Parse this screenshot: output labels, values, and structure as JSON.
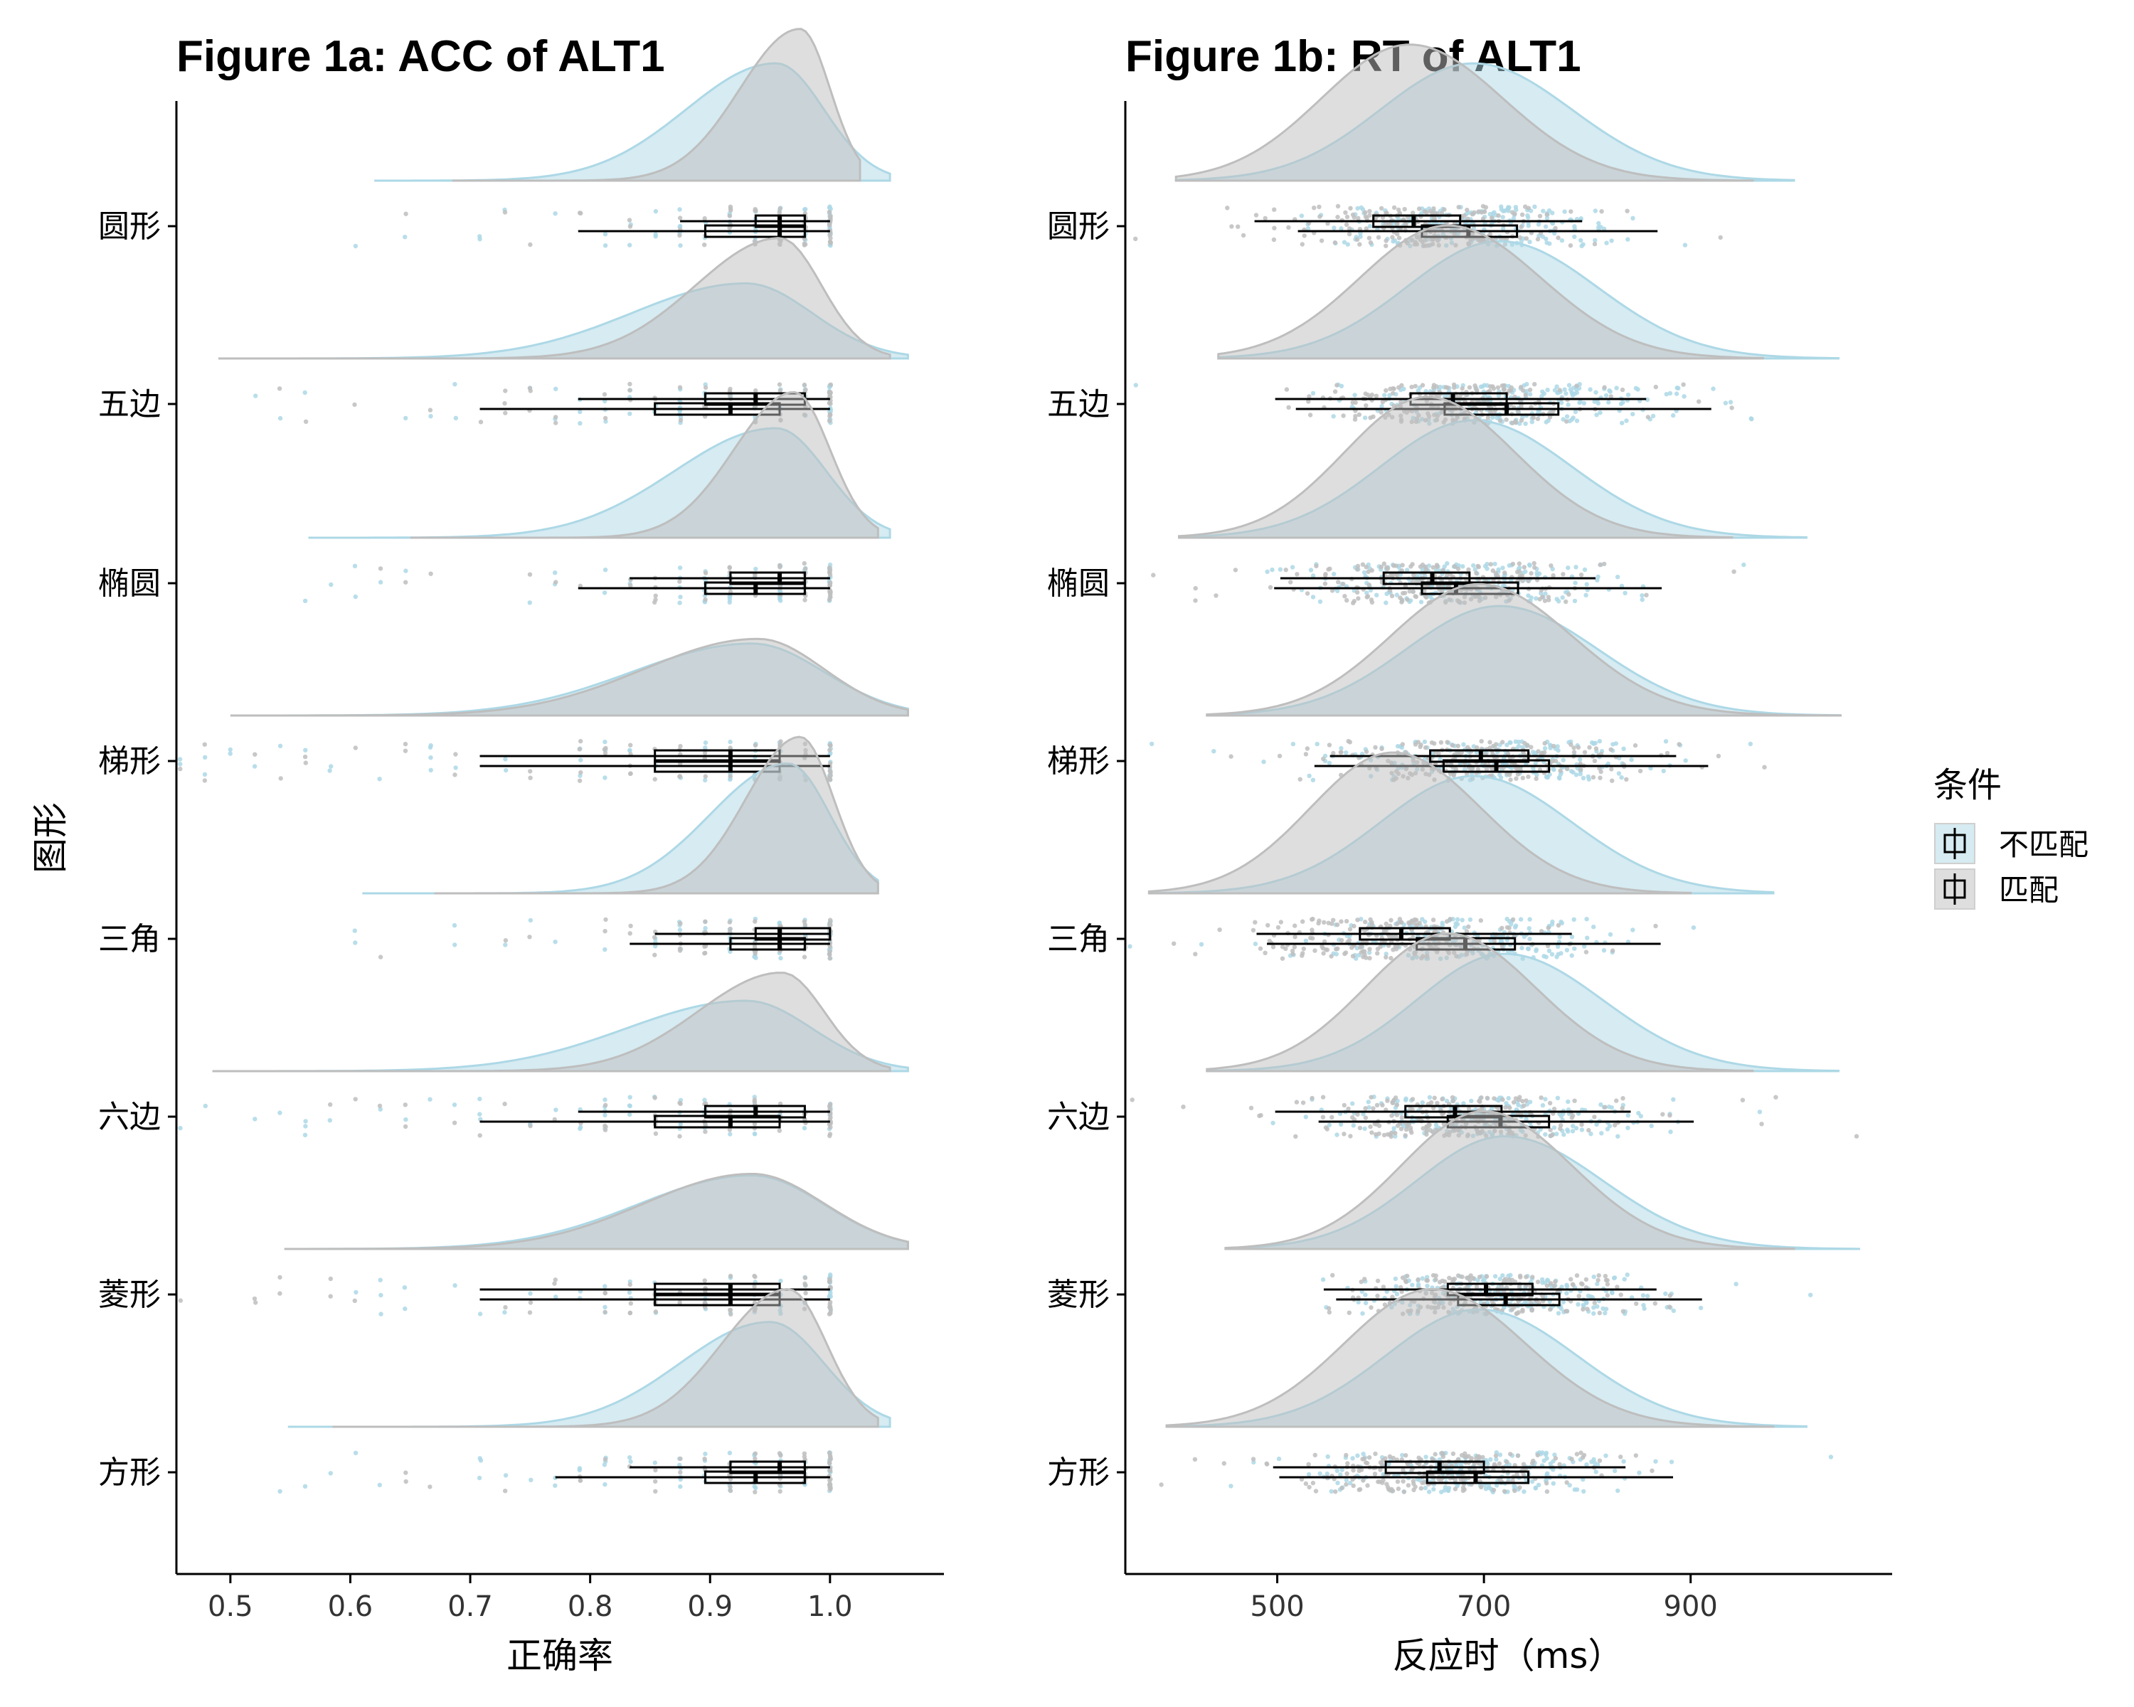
{
  "colors": {
    "mismatch": "#add8e6",
    "match": "#bebebe",
    "box": "#000000",
    "axis": "#000000"
  },
  "legend": {
    "title": "条件",
    "items": [
      {
        "label": "不匹配",
        "color": "#add8e6"
      },
      {
        "label": "匹配",
        "color": "#bebebe"
      }
    ]
  },
  "chart_data": [
    {
      "type": "raincloud",
      "title": "Figure 1a: ACC of ALT1",
      "xlabel": "正确率",
      "ylabel": "图形",
      "categories": [
        "圆形",
        "五边",
        "椭圆",
        "梯形",
        "三角",
        "六边",
        "菱形",
        "方形"
      ],
      "xlim": [
        0.455,
        1.095
      ],
      "xticks": [
        0.5,
        0.6,
        0.7,
        0.8,
        0.9,
        1.0
      ],
      "xtick_labels": [
        "0.5",
        "0.6",
        "0.7",
        "0.8",
        "0.9",
        "1.0"
      ],
      "grid": false,
      "legend_position": "right",
      "series": [
        {
          "name": "不匹配",
          "color": "#add8e6",
          "box": [
            {
              "wmin": 0.79,
              "q1": 0.896,
              "median": 0.958,
              "q3": 0.979,
              "wmax": 1.0
            },
            {
              "wmin": 0.708,
              "q1": 0.854,
              "median": 0.917,
              "q3": 0.958,
              "wmax": 1.0
            },
            {
              "wmin": 0.79,
              "q1": 0.896,
              "median": 0.938,
              "q3": 0.979,
              "wmax": 1.0
            },
            {
              "wmin": 0.708,
              "q1": 0.854,
              "median": 0.917,
              "q3": 0.958,
              "wmax": 1.0
            },
            {
              "wmin": 0.833,
              "q1": 0.917,
              "median": 0.958,
              "q3": 0.979,
              "wmax": 1.0
            },
            {
              "wmin": 0.708,
              "q1": 0.854,
              "median": 0.917,
              "q3": 0.958,
              "wmax": 1.0
            },
            {
              "wmin": 0.708,
              "q1": 0.854,
              "median": 0.917,
              "q3": 0.958,
              "wmax": 1.0
            },
            {
              "wmin": 0.771,
              "q1": 0.896,
              "median": 0.938,
              "q3": 0.979,
              "wmax": 1.0
            }
          ],
          "density": [
            {
              "lo": 0.62,
              "hi": 1.05,
              "mode": 0.955,
              "sdl": 0.075,
              "sdr": 0.04,
              "peak": 0.75
            },
            {
              "lo": 0.49,
              "hi": 1.065,
              "mode": 0.93,
              "sdl": 0.095,
              "sdr": 0.055,
              "peak": 0.48
            },
            {
              "lo": 0.565,
              "hi": 1.05,
              "mode": 0.955,
              "sdl": 0.085,
              "sdr": 0.042,
              "peak": 0.7
            },
            {
              "lo": 0.5,
              "hi": 1.065,
              "mode": 0.935,
              "sdl": 0.1,
              "sdr": 0.06,
              "peak": 0.46
            },
            {
              "lo": 0.61,
              "hi": 1.04,
              "mode": 0.965,
              "sdl": 0.065,
              "sdr": 0.035,
              "peak": 0.83
            },
            {
              "lo": 0.485,
              "hi": 1.065,
              "mode": 0.93,
              "sdl": 0.1,
              "sdr": 0.055,
              "peak": 0.45
            },
            {
              "lo": 0.545,
              "hi": 1.065,
              "mode": 0.935,
              "sdl": 0.095,
              "sdr": 0.06,
              "peak": 0.47
            },
            {
              "lo": 0.548,
              "hi": 1.05,
              "mode": 0.95,
              "sdl": 0.075,
              "sdr": 0.045,
              "peak": 0.67
            }
          ]
        },
        {
          "name": "匹配",
          "color": "#bebebe",
          "box": [
            {
              "wmin": 0.875,
              "q1": 0.938,
              "median": 0.958,
              "q3": 0.979,
              "wmax": 1.0
            },
            {
              "wmin": 0.79,
              "q1": 0.896,
              "median": 0.938,
              "q3": 0.979,
              "wmax": 1.0
            },
            {
              "wmin": 0.833,
              "q1": 0.917,
              "median": 0.958,
              "q3": 0.979,
              "wmax": 1.0
            },
            {
              "wmin": 0.708,
              "q1": 0.854,
              "median": 0.917,
              "q3": 0.958,
              "wmax": 1.0
            },
            {
              "wmin": 0.854,
              "q1": 0.938,
              "median": 0.958,
              "q3": 1.0,
              "wmax": 1.0
            },
            {
              "wmin": 0.79,
              "q1": 0.896,
              "median": 0.938,
              "q3": 0.979,
              "wmax": 1.0
            },
            {
              "wmin": 0.708,
              "q1": 0.854,
              "median": 0.917,
              "q3": 0.958,
              "wmax": 1.0
            },
            {
              "wmin": 0.833,
              "q1": 0.917,
              "median": 0.958,
              "q3": 0.979,
              "wmax": 1.0
            }
          ],
          "density": [
            {
              "lo": 0.685,
              "hi": 1.025,
              "mode": 0.975,
              "sdl": 0.05,
              "sdr": 0.025,
              "peak": 0.97
            },
            {
              "lo": 0.49,
              "hi": 1.05,
              "mode": 0.958,
              "sdl": 0.07,
              "sdr": 0.035,
              "peak": 0.77
            },
            {
              "lo": 0.65,
              "hi": 1.04,
              "mode": 0.97,
              "sdl": 0.05,
              "sdr": 0.03,
              "peak": 0.93
            },
            {
              "lo": 0.5,
              "hi": 1.065,
              "mode": 0.94,
              "sdl": 0.095,
              "sdr": 0.055,
              "peak": 0.49
            },
            {
              "lo": 0.67,
              "hi": 1.04,
              "mode": 0.975,
              "sdl": 0.045,
              "sdr": 0.028,
              "peak": 1.0
            },
            {
              "lo": 0.485,
              "hi": 1.05,
              "mode": 0.96,
              "sdl": 0.07,
              "sdr": 0.035,
              "peak": 0.63
            },
            {
              "lo": 0.545,
              "hi": 1.065,
              "mode": 0.935,
              "sdl": 0.09,
              "sdr": 0.06,
              "peak": 0.48
            },
            {
              "lo": 0.585,
              "hi": 1.04,
              "mode": 0.965,
              "sdl": 0.055,
              "sdr": 0.032,
              "peak": 0.88
            }
          ]
        }
      ]
    },
    {
      "type": "raincloud",
      "title": "Figure 1b: RT of ALT1",
      "xlabel": "反应时（ms）",
      "ylabel": "",
      "categories": [
        "圆形",
        "五边",
        "椭圆",
        "梯形",
        "三角",
        "六边",
        "菱形",
        "方形"
      ],
      "xlim": [
        353,
        1095
      ],
      "xticks": [
        500,
        700,
        900
      ],
      "xtick_labels": [
        "500",
        "700",
        "900"
      ],
      "grid": false,
      "series": [
        {
          "name": "不匹配",
          "color": "#add8e6",
          "box": [
            {
              "wmin": 520,
              "q1": 640,
              "median": 685,
              "q3": 732,
              "wmax": 868
            },
            {
              "wmin": 518,
              "q1": 662,
              "median": 722,
              "q3": 772,
              "wmax": 920
            },
            {
              "wmin": 497,
              "q1": 640,
              "median": 673,
              "q3": 733,
              "wmax": 872
            },
            {
              "wmin": 536,
              "q1": 661,
              "median": 712,
              "q3": 763,
              "wmax": 917
            },
            {
              "wmin": 490,
              "q1": 635,
              "median": 682,
              "q3": 730,
              "wmax": 871
            },
            {
              "wmin": 540,
              "q1": 665,
              "median": 716,
              "q3": 763,
              "wmax": 903
            },
            {
              "wmin": 557,
              "q1": 675,
              "median": 721,
              "q3": 773,
              "wmax": 911
            },
            {
              "wmin": 502,
              "q1": 645,
              "median": 692,
              "q3": 743,
              "wmax": 883
            }
          ],
          "density": [
            {
              "lo": 402,
              "hi": 1000,
              "mode": 690,
              "sdl": 90,
              "sdr": 95,
              "peak": 0.75
            },
            {
              "lo": 443,
              "hi": 1043,
              "mode": 715,
              "sdl": 90,
              "sdr": 95,
              "peak": 0.75
            },
            {
              "lo": 405,
              "hi": 1012,
              "mode": 690,
              "sdl": 90,
              "sdr": 95,
              "peak": 0.75
            },
            {
              "lo": 432,
              "hi": 1045,
              "mode": 715,
              "sdl": 90,
              "sdr": 95,
              "peak": 0.7
            },
            {
              "lo": 376,
              "hi": 980,
              "mode": 690,
              "sdl": 90,
              "sdr": 95,
              "peak": 0.75
            },
            {
              "lo": 432,
              "hi": 1043,
              "mode": 720,
              "sdl": 85,
              "sdr": 95,
              "peak": 0.75
            },
            {
              "lo": 450,
              "hi": 1063,
              "mode": 720,
              "sdl": 85,
              "sdr": 95,
              "peak": 0.72
            },
            {
              "lo": 393,
              "hi": 1012,
              "mode": 695,
              "sdl": 90,
              "sdr": 95,
              "peak": 0.75
            }
          ]
        },
        {
          "name": "匹配",
          "color": "#bebebe",
          "box": [
            {
              "wmin": 478,
              "q1": 593,
              "median": 632,
              "q3": 677,
              "wmax": 795
            },
            {
              "wmin": 498,
              "q1": 629,
              "median": 670,
              "q3": 722,
              "wmax": 857
            },
            {
              "wmin": 503,
              "q1": 603,
              "median": 650,
              "q3": 686,
              "wmax": 808
            },
            {
              "wmin": 551,
              "q1": 648,
              "median": 697,
              "q3": 743,
              "wmax": 886
            },
            {
              "wmin": 480,
              "q1": 580,
              "median": 620,
              "q3": 667,
              "wmax": 785
            },
            {
              "wmin": 498,
              "q1": 624,
              "median": 672,
              "q3": 717,
              "wmax": 842
            },
            {
              "wmin": 545,
              "q1": 665,
              "median": 702,
              "q3": 747,
              "wmax": 867
            },
            {
              "wmin": 496,
              "q1": 605,
              "median": 657,
              "q3": 700,
              "wmax": 837
            }
          ],
          "density": [
            {
              "lo": 402,
              "hi": 960,
              "mode": 628,
              "sdl": 85,
              "sdr": 90,
              "peak": 0.87
            },
            {
              "lo": 443,
              "hi": 970,
              "mode": 665,
              "sdl": 85,
              "sdr": 90,
              "peak": 0.85
            },
            {
              "lo": 405,
              "hi": 940,
              "mode": 645,
              "sdl": 80,
              "sdr": 85,
              "peak": 0.9
            },
            {
              "lo": 432,
              "hi": 1045,
              "mode": 695,
              "sdl": 85,
              "sdr": 90,
              "peak": 0.84
            },
            {
              "lo": 376,
              "hi": 900,
              "mode": 612,
              "sdl": 80,
              "sdr": 85,
              "peak": 0.9
            },
            {
              "lo": 432,
              "hi": 960,
              "mode": 665,
              "sdl": 80,
              "sdr": 85,
              "peak": 0.88
            },
            {
              "lo": 450,
              "hi": 1000,
              "mode": 700,
              "sdl": 80,
              "sdr": 85,
              "peak": 0.88
            },
            {
              "lo": 393,
              "hi": 980,
              "mode": 650,
              "sdl": 85,
              "sdr": 90,
              "peak": 0.88
            }
          ]
        }
      ]
    }
  ]
}
